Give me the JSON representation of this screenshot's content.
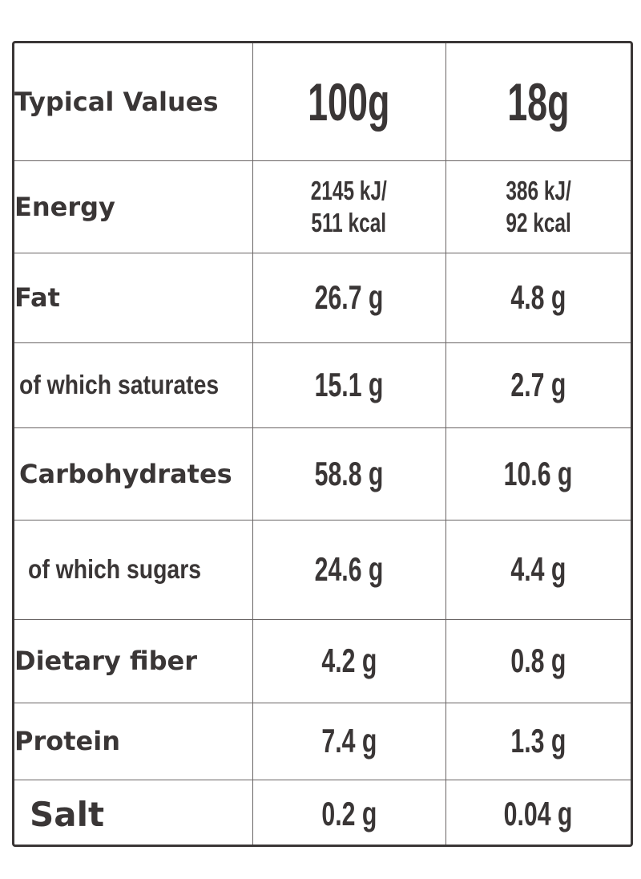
{
  "header": {
    "label": "Typical Values",
    "col1": "100g",
    "col2": "18g"
  },
  "rows": [
    {
      "label": "Energy",
      "per100_line1": "2145 kJ/",
      "per100_line2": "511 kcal",
      "serving_line1": "386 kJ/",
      "serving_line2": "92 kcal"
    },
    {
      "label": "Fat",
      "per100": "26.7 g",
      "serving": "4.8 g"
    },
    {
      "label": "of which saturates",
      "per100": "15.1 g",
      "serving": "2.7 g"
    },
    {
      "label": "Carbohydrates",
      "per100": "58.8 g",
      "serving": "10.6 g"
    },
    {
      "label": "of which sugars",
      "per100": "24.6 g",
      "serving": "4.4 g"
    },
    {
      "label": "Dietary fiber",
      "per100": "4.2 g",
      "serving": "0.8 g"
    },
    {
      "label": "Protein",
      "per100": "7.4 g",
      "serving": "1.3 g"
    },
    {
      "label": "Salt",
      "per100": "0.2 g",
      "serving": "0.04 g"
    }
  ],
  "colors": {
    "text": "#3a3636",
    "border": "#3a3636",
    "background": "#ffffff"
  }
}
